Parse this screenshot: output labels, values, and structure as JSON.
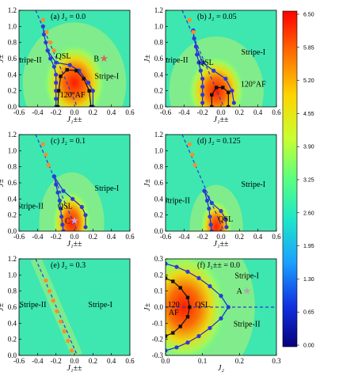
{
  "colorbar": {
    "labels": [
      "6.50",
      "5.85",
      "5.20",
      "4.55",
      "3.90",
      "3.25",
      "2.60",
      "1.95",
      "1.30",
      "0.65",
      "0.00"
    ],
    "min": 0,
    "max": 6.5
  },
  "chart_data": [
    {
      "id": "a",
      "type": "scatter",
      "label": "(a) J₂ = 0.0",
      "xlabel": "J₁±±",
      "ylabel": "J±",
      "xlim": [
        -0.6,
        0.6
      ],
      "ylim": [
        0,
        1.2
      ],
      "xticks": [
        "-0.6",
        "-0.4",
        "-0.2",
        "0.0",
        "0.2",
        "0.4",
        "0.6"
      ],
      "yticks": [
        "0.0",
        "0.2",
        "0.4",
        "0.6",
        "0.8",
        "1.0",
        "1.2"
      ],
      "hot": {
        "cx": 0.0,
        "cy": 0.3,
        "rx": 0.35,
        "ry": 0.5
      },
      "dashed_line": [
        [
          -0.42,
          1.2
        ],
        [
          0.03,
          0.0
        ]
      ],
      "orange_points": [
        [
          -0.34,
          1.08
        ],
        [
          -0.3,
          0.93
        ],
        [
          -0.26,
          0.8
        ],
        [
          -0.22,
          0.7
        ]
      ],
      "qsl_boundary": [
        [
          -0.34,
          1.0
        ],
        [
          -0.33,
          0.9
        ],
        [
          -0.31,
          0.8
        ],
        [
          -0.29,
          0.7
        ],
        [
          -0.26,
          0.6
        ],
        [
          -0.22,
          0.5
        ],
        [
          -0.2,
          0.4
        ],
        [
          -0.2,
          0.3
        ],
        [
          -0.2,
          0.2
        ],
        [
          -0.2,
          0.1
        ],
        [
          -0.2,
          0.0
        ]
      ],
      "qsl_right": [
        [
          -0.29,
          0.7
        ],
        [
          -0.2,
          0.55
        ],
        [
          -0.05,
          0.52
        ],
        [
          0.05,
          0.45
        ],
        [
          0.15,
          0.3
        ],
        [
          0.2,
          0.2
        ],
        [
          0.2,
          0.0
        ]
      ],
      "af120_boundary": [
        [
          -0.18,
          0.0
        ],
        [
          -0.17,
          0.2
        ],
        [
          -0.15,
          0.38
        ],
        [
          -0.08,
          0.46
        ],
        [
          0.02,
          0.45
        ],
        [
          0.1,
          0.35
        ],
        [
          0.16,
          0.2
        ],
        [
          0.18,
          0.0
        ]
      ],
      "star": {
        "x": 0.32,
        "y": 0.6,
        "label": "B",
        "color": "#d9665a"
      },
      "regions": [
        {
          "text": "Stripe-II",
          "x": -0.5,
          "y": 0.55
        },
        {
          "text": "QSL",
          "x": -0.12,
          "y": 0.6
        },
        {
          "text": "Stripe-I",
          "x": 0.35,
          "y": 0.35
        },
        {
          "text": "120°AF",
          "x": -0.02,
          "y": 0.12
        }
      ]
    },
    {
      "id": "b",
      "type": "scatter",
      "label": "(b) J₂ = 0.05",
      "xlabel": "J₁±±",
      "ylabel": "J±",
      "xlim": [
        -0.6,
        0.6
      ],
      "ylim": [
        0,
        1.2
      ],
      "xticks": [
        "-0.6",
        "-0.4",
        "-0.2",
        "0.0",
        "0.2",
        "0.4",
        "0.6"
      ],
      "yticks": [
        "0.0",
        "0.2",
        "0.4",
        "0.6",
        "0.8",
        "1.0",
        "1.2"
      ],
      "hot": {
        "cx": -0.05,
        "cy": 0.2,
        "rx": 0.32,
        "ry": 0.45
      },
      "dashed_line": [
        [
          -0.42,
          1.2
        ],
        [
          0.03,
          0.0
        ]
      ],
      "orange_points": [
        [
          -0.34,
          1.08
        ],
        [
          -0.3,
          0.93
        ]
      ],
      "qsl_boundary": [
        [
          -0.3,
          0.95
        ],
        [
          -0.29,
          0.85
        ],
        [
          -0.27,
          0.75
        ],
        [
          -0.26,
          0.65
        ],
        [
          -0.24,
          0.55
        ],
        [
          -0.22,
          0.45
        ],
        [
          -0.2,
          0.35
        ],
        [
          -0.2,
          0.25
        ],
        [
          -0.2,
          0.15
        ],
        [
          -0.2,
          0.05
        ]
      ],
      "qsl_right": [
        [
          -0.27,
          0.75
        ],
        [
          -0.2,
          0.55
        ],
        [
          -0.08,
          0.45
        ],
        [
          0.05,
          0.35
        ],
        [
          0.12,
          0.2
        ],
        [
          0.14,
          0.05
        ]
      ],
      "af120_boundary": [
        [
          -0.1,
          0.0
        ],
        [
          -0.1,
          0.15
        ],
        [
          -0.05,
          0.24
        ],
        [
          0.02,
          0.24
        ],
        [
          0.08,
          0.18
        ],
        [
          0.08,
          0.0
        ]
      ],
      "star": null,
      "regions": [
        {
          "text": "Stripe-II",
          "x": -0.5,
          "y": 0.55
        },
        {
          "text": "QSL",
          "x": -0.16,
          "y": 0.52
        },
        {
          "text": "Stripe-I",
          "x": 0.35,
          "y": 0.65
        },
        {
          "text": "120°AF",
          "x": 0.35,
          "y": 0.25
        }
      ]
    },
    {
      "id": "c",
      "type": "scatter",
      "label": "(c) J₂ = 0.1",
      "xlabel": "J₁±±",
      "ylabel": "J±",
      "xlim": [
        -0.6,
        0.6
      ],
      "ylim": [
        0,
        1.2
      ],
      "xticks": [
        "-0.6",
        "-0.4",
        "-0.2",
        "0.0",
        "0.2",
        "0.4",
        "0.6"
      ],
      "yticks": [
        "0.0",
        "0.2",
        "0.4",
        "0.6",
        "0.8",
        "1.0",
        "1.2"
      ],
      "hot": {
        "cx": -0.03,
        "cy": 0.1,
        "rx": 0.22,
        "ry": 0.42
      },
      "dashed_line": [
        [
          -0.42,
          1.2
        ],
        [
          0.03,
          0.0
        ]
      ],
      "orange_points": [
        [
          -0.34,
          1.08
        ],
        [
          -0.31,
          0.95
        ],
        [
          -0.28,
          0.82
        ]
      ],
      "qsl_boundary": [
        [
          -0.22,
          0.68
        ],
        [
          -0.2,
          0.58
        ],
        [
          -0.18,
          0.48
        ],
        [
          -0.16,
          0.38
        ],
        [
          -0.15,
          0.28
        ],
        [
          -0.14,
          0.18
        ],
        [
          -0.13,
          0.08
        ],
        [
          -0.12,
          0.0
        ]
      ],
      "qsl_right": [
        [
          -0.22,
          0.68
        ],
        [
          -0.12,
          0.5
        ],
        [
          -0.02,
          0.4
        ],
        [
          0.08,
          0.3
        ],
        [
          0.12,
          0.2
        ],
        [
          0.12,
          0.05
        ]
      ],
      "af120_boundary": [],
      "star": {
        "x": 0.0,
        "y": 0.13,
        "label": "C",
        "color": "#c9a0dc"
      },
      "regions": [
        {
          "text": "Stripe-II",
          "x": -0.48,
          "y": 0.28
        },
        {
          "text": "QSL",
          "x": -0.1,
          "y": 0.28
        },
        {
          "text": "Stripe-I",
          "x": 0.35,
          "y": 0.5
        }
      ]
    },
    {
      "id": "d",
      "type": "scatter",
      "label": "(d) J₂ = 0.125",
      "xlabel": "J₁±±",
      "ylabel": "J±",
      "xlim": [
        -0.6,
        0.6
      ],
      "ylim": [
        0,
        1.2
      ],
      "xticks": [
        "-0.6",
        "-0.4",
        "-0.2",
        "0.0",
        "0.2",
        "0.4",
        "0.6"
      ],
      "yticks": [
        "0.0",
        "0.2",
        "0.4",
        "0.6",
        "0.8",
        "1.0",
        "1.2"
      ],
      "hot": {
        "cx": -0.05,
        "cy": 0.05,
        "rx": 0.18,
        "ry": 0.35
      },
      "dashed_line": [
        [
          -0.42,
          1.2
        ],
        [
          0.03,
          0.0
        ]
      ],
      "orange_points": [
        [
          -0.34,
          1.08
        ],
        [
          -0.31,
          0.95
        ],
        [
          -0.28,
          0.82
        ]
      ],
      "qsl_boundary": [
        [
          -0.18,
          0.5
        ],
        [
          -0.15,
          0.38
        ],
        [
          -0.13,
          0.28
        ],
        [
          -0.12,
          0.18
        ],
        [
          -0.11,
          0.08
        ],
        [
          -0.1,
          0.0
        ]
      ],
      "qsl_right": [
        [
          -0.18,
          0.5
        ],
        [
          -0.1,
          0.35
        ],
        [
          0.0,
          0.25
        ],
        [
          0.05,
          0.15
        ],
        [
          0.06,
          0.05
        ]
      ],
      "af120_boundary": [],
      "star": null,
      "regions": [
        {
          "text": "Stripe-II",
          "x": -0.48,
          "y": 0.35
        },
        {
          "text": "QSL",
          "x": 0.05,
          "y": 0.12
        },
        {
          "text": "Stripe-I",
          "x": 0.35,
          "y": 0.55
        }
      ]
    },
    {
      "id": "e",
      "type": "scatter",
      "label": "(e) J₂ = 0.3",
      "xlabel": "J₁±±",
      "ylabel": "J±",
      "xlim": [
        -0.6,
        0.6
      ],
      "ylim": [
        0,
        1.2
      ],
      "xticks": [
        "-0.6",
        "-0.4",
        "-0.2",
        "0.0",
        "0.2",
        "0.4",
        "0.6"
      ],
      "yticks": [
        "0.0",
        "0.2",
        "0.4",
        "0.6",
        "0.8",
        "1.0",
        "1.2"
      ],
      "hot": null,
      "dashed_line": [
        [
          -0.42,
          1.2
        ],
        [
          0.03,
          0.0
        ]
      ],
      "orange_points": [
        [
          -0.31,
          0.93
        ],
        [
          -0.27,
          0.8
        ],
        [
          -0.23,
          0.68
        ],
        [
          -0.19,
          0.55
        ],
        [
          -0.15,
          0.42
        ],
        [
          -0.11,
          0.3
        ],
        [
          -0.07,
          0.18
        ],
        [
          -0.03,
          0.06
        ]
      ],
      "qsl_boundary": [],
      "qsl_right": [],
      "af120_boundary": [],
      "star": null,
      "regions": [
        {
          "text": "Stripe-II",
          "x": -0.45,
          "y": 0.6
        },
        {
          "text": "Stripe-I",
          "x": 0.28,
          "y": 0.6
        }
      ]
    },
    {
      "id": "f",
      "type": "scatter",
      "label": "(f) J₁±± = 0.0",
      "xlabel": "J₂",
      "ylabel": "J±",
      "xlim": [
        0.0,
        0.3
      ],
      "ylim": [
        -0.3,
        0.3
      ],
      "xticks": [
        "0.0",
        "0.1",
        "0.2",
        "0.3"
      ],
      "yticks": [
        "-0.3",
        "-0.2",
        "-0.1",
        "0.0",
        "0.1",
        "0.2",
        "0.3"
      ],
      "hot": {
        "cx": 0.05,
        "cy": 0.0,
        "rx": 0.12,
        "ry": 0.35
      },
      "dashed_line": [
        [
          0.0,
          0.0
        ],
        [
          0.3,
          0.0
        ]
      ],
      "orange_points": [],
      "qsl_outer": [
        [
          0.0,
          0.27
        ],
        [
          0.03,
          0.25
        ],
        [
          0.06,
          0.22
        ],
        [
          0.09,
          0.18
        ],
        [
          0.12,
          0.13
        ],
        [
          0.15,
          0.07
        ],
        [
          0.17,
          0.0
        ],
        [
          0.15,
          -0.07
        ],
        [
          0.12,
          -0.13
        ],
        [
          0.09,
          -0.18
        ],
        [
          0.06,
          -0.22
        ],
        [
          0.03,
          -0.25
        ],
        [
          0.0,
          -0.27
        ]
      ],
      "af120_inner": [
        [
          0.0,
          0.18
        ],
        [
          0.02,
          0.16
        ],
        [
          0.04,
          0.12
        ],
        [
          0.06,
          0.06
        ],
        [
          0.065,
          0.0
        ],
        [
          0.06,
          -0.06
        ],
        [
          0.04,
          -0.12
        ],
        [
          0.02,
          -0.16
        ],
        [
          0.0,
          -0.18
        ]
      ],
      "star": {
        "x": 0.22,
        "y": 0.1,
        "label": "A",
        "color": "#aaaaaa"
      },
      "regions": [
        {
          "text": "Stripe-I",
          "x": 0.22,
          "y": 0.18
        },
        {
          "text": "QSL",
          "x": 0.1,
          "y": 0.0
        },
        {
          "text": "Stripe-II",
          "x": 0.22,
          "y": -0.12
        },
        {
          "text": "120",
          "x": 0.022,
          "y": 0.0
        },
        {
          "text": "AF",
          "x": 0.022,
          "y": -0.05
        }
      ]
    }
  ]
}
